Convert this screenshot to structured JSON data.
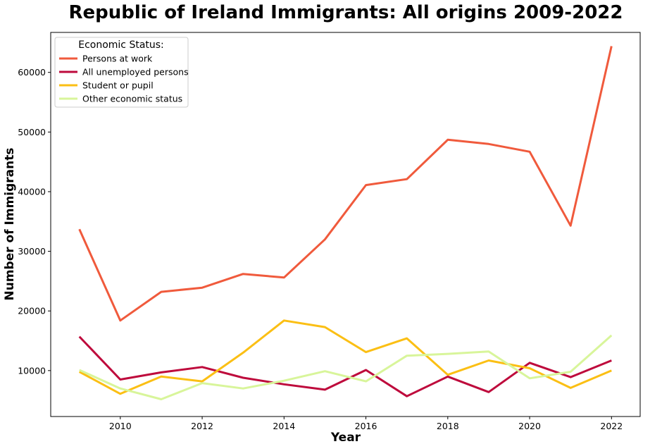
{
  "chart_data": {
    "type": "line",
    "title": "Republic of Ireland Immigrants: All origins 2009-2022",
    "xlabel": "Year",
    "ylabel": "Number of Immigrants",
    "x": [
      2009,
      2010,
      2011,
      2012,
      2013,
      2014,
      2015,
      2016,
      2017,
      2018,
      2019,
      2020,
      2021,
      2022
    ],
    "xlim": [
      2008.3,
      2022.7
    ],
    "ylim": [
      2300,
      66700
    ],
    "xticks": [
      2010,
      2012,
      2014,
      2016,
      2018,
      2020,
      2022
    ],
    "yticks": [
      10000,
      20000,
      30000,
      40000,
      50000,
      60000
    ],
    "grid": false,
    "legend": {
      "title": "Economic Status:",
      "placement": "top-left"
    },
    "series": [
      {
        "name": "Persons at work",
        "color": "#f05a3c",
        "values": [
          33700,
          18400,
          23200,
          23900,
          26200,
          25600,
          32000,
          41100,
          42100,
          48700,
          48000,
          46700,
          34300,
          64400
        ]
      },
      {
        "name": "All unemployed persons",
        "color": "#be0a3c",
        "values": [
          15700,
          8500,
          9700,
          10600,
          8800,
          7700,
          6800,
          10100,
          5700,
          9000,
          6400,
          11300,
          8900,
          11700
        ]
      },
      {
        "name": "Student or pupil",
        "color": "#fbbf14",
        "values": [
          9800,
          6100,
          9000,
          8200,
          13000,
          18400,
          17300,
          13100,
          15400,
          9300,
          11700,
          10400,
          7100,
          10000
        ]
      },
      {
        "name": "Other economic status",
        "color": "#d8f59a",
        "values": [
          10100,
          7000,
          5200,
          7900,
          7000,
          8300,
          9900,
          8200,
          12500,
          12800,
          13200,
          8700,
          9800,
          15900
        ]
      }
    ]
  }
}
